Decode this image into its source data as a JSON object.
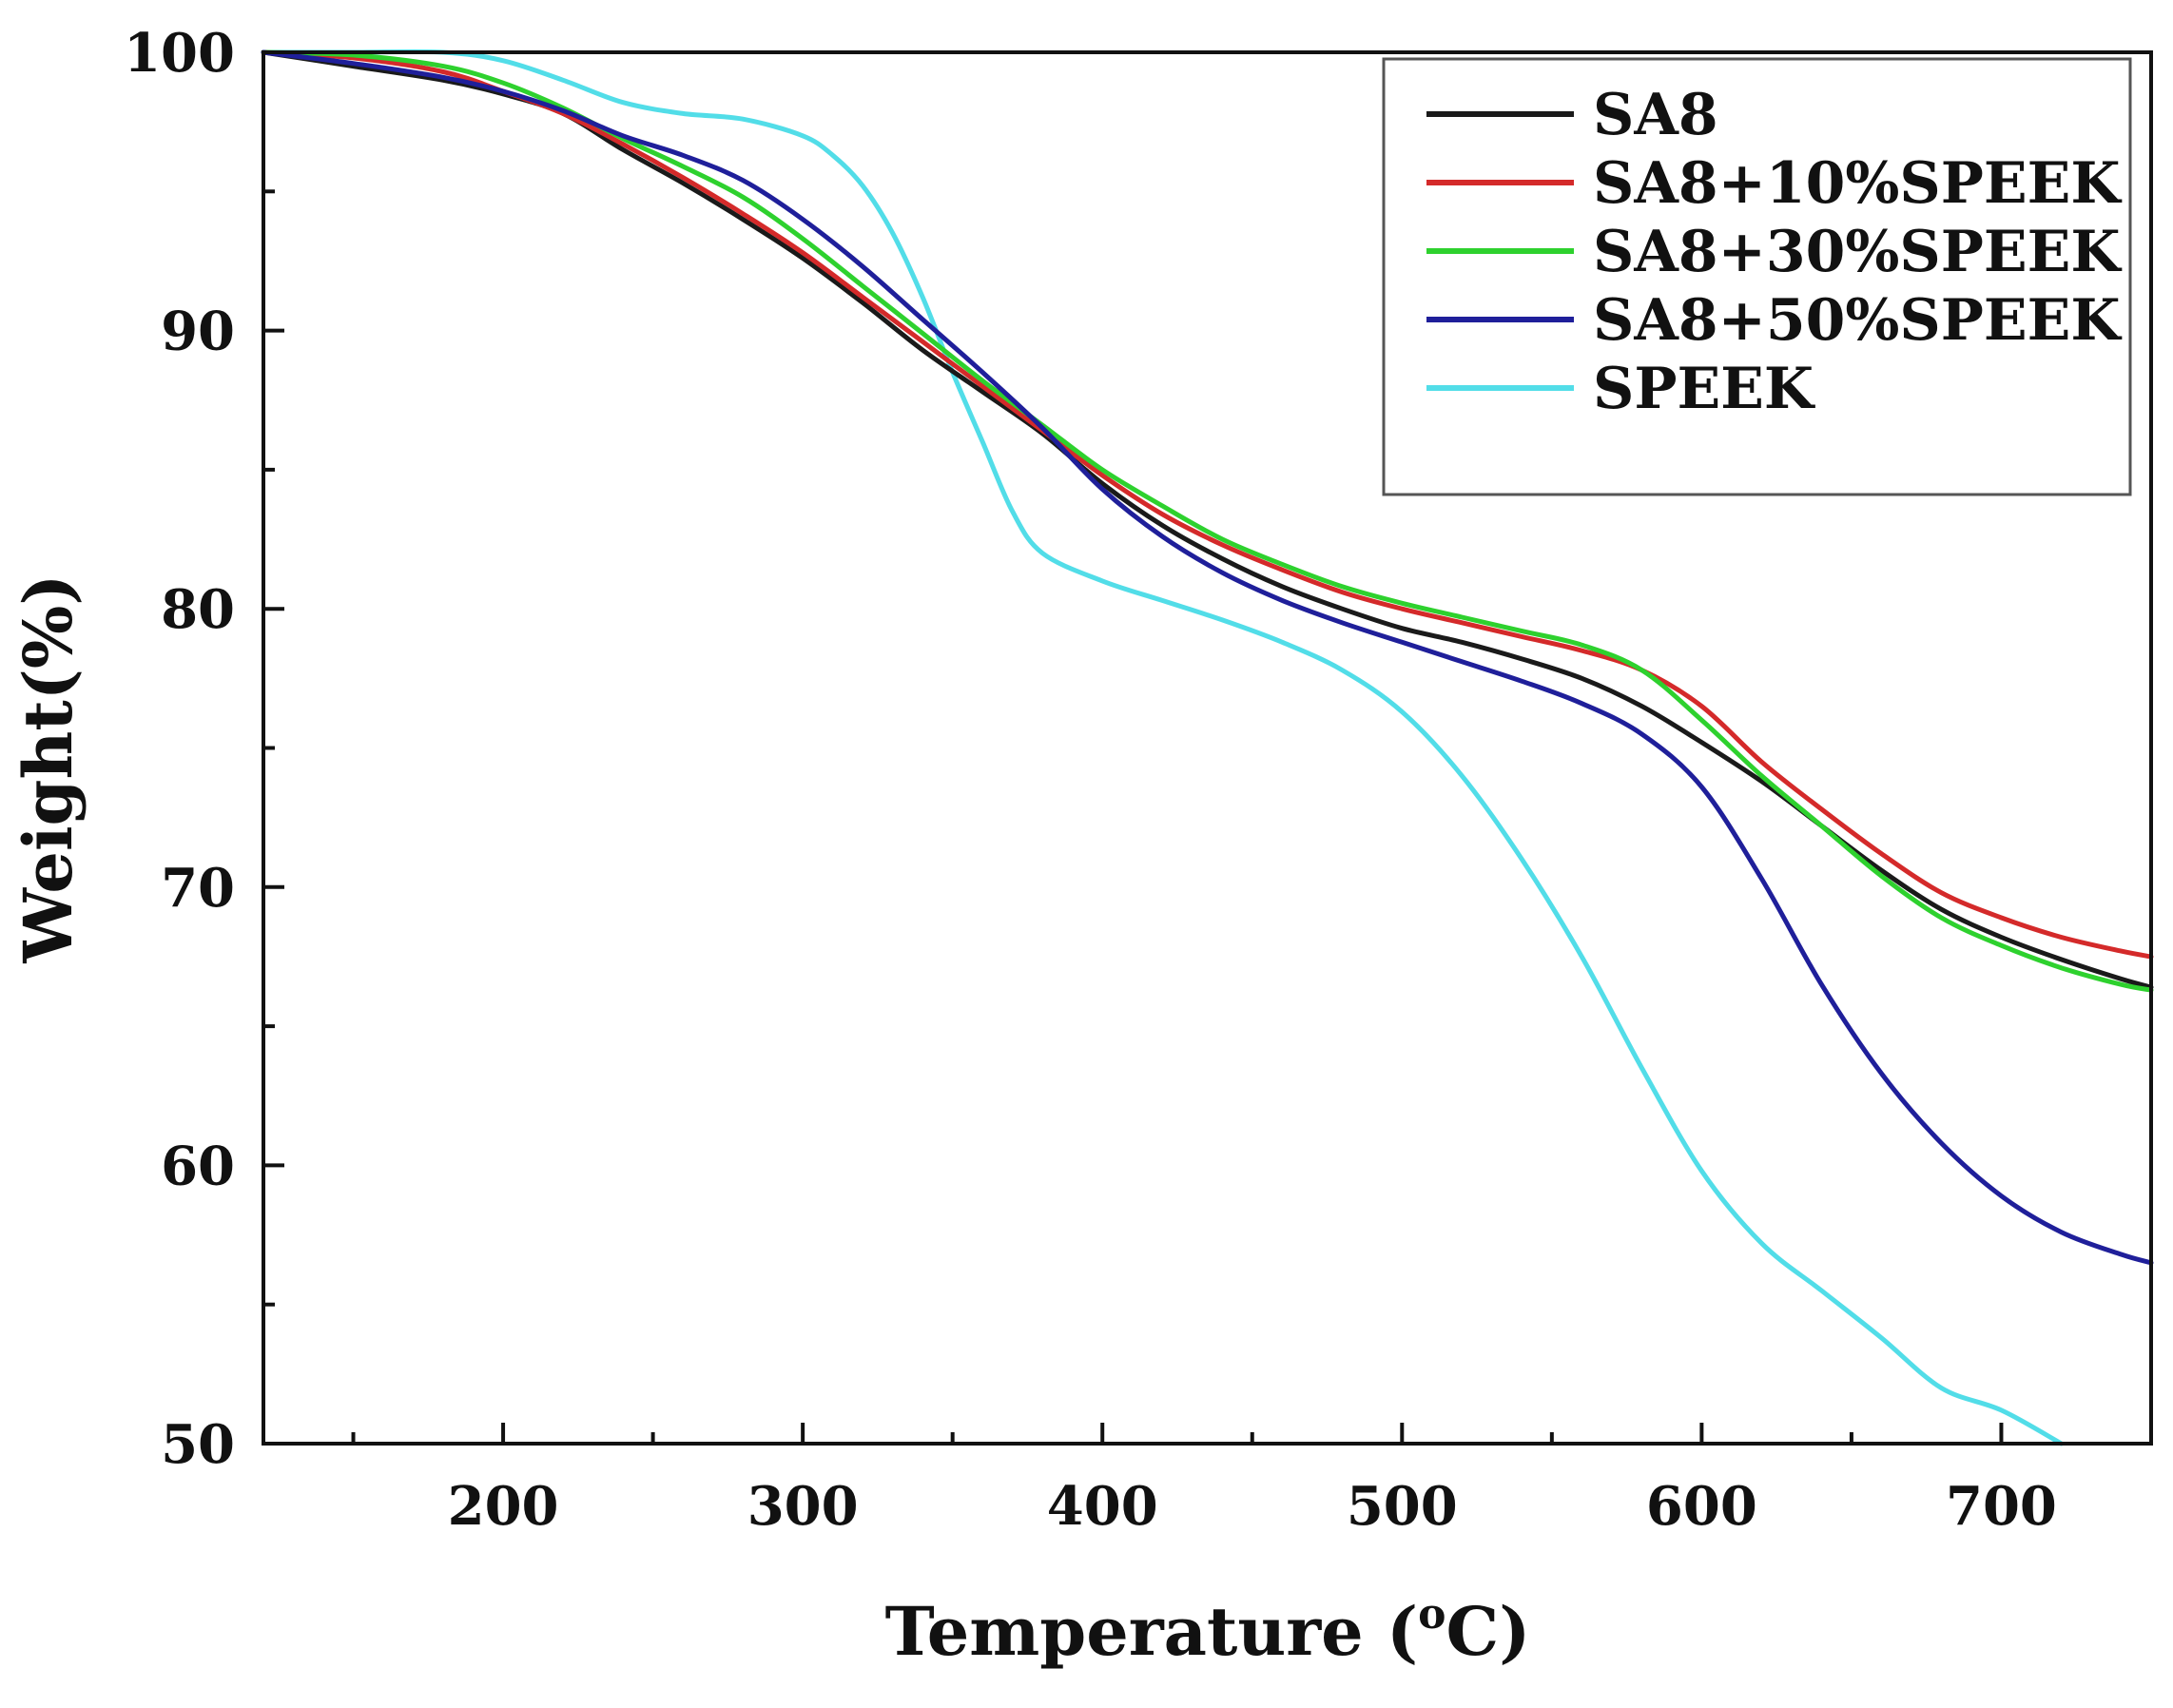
{
  "chart_data": {
    "type": "line",
    "title": "",
    "xlabel_main": "Temperature (",
    "xlabel_sup": "o",
    "xlabel_end": "C)",
    "ylabel": "Weight(%)",
    "xlim": [
      120,
      750
    ],
    "ylim": [
      50,
      100
    ],
    "xticks": [
      200,
      300,
      400,
      500,
      600,
      700
    ],
    "xtick_labels": [
      "200",
      "300",
      "400",
      "500",
      "600",
      "700"
    ],
    "yticks": [
      50,
      60,
      70,
      80,
      90,
      100
    ],
    "ytick_labels": [
      "50",
      "60",
      "70",
      "80",
      "90",
      "100"
    ],
    "legend_position": "top-right",
    "series": [
      {
        "name": "SA8",
        "color": "#1a1a1a",
        "x": [
          120,
          150,
          180,
          200,
          220,
          240,
          260,
          280,
          300,
          320,
          340,
          360,
          380,
          400,
          420,
          440,
          460,
          480,
          500,
          520,
          540,
          560,
          580,
          600,
          620,
          640,
          660,
          680,
          700,
          720,
          740,
          750
        ],
        "y": [
          100,
          99.5,
          99.0,
          98.5,
          97.8,
          96.5,
          95.3,
          94.0,
          92.6,
          91.0,
          89.3,
          87.8,
          86.3,
          84.5,
          83.0,
          81.8,
          80.8,
          80.0,
          79.3,
          78.8,
          78.2,
          77.5,
          76.5,
          75.2,
          73.8,
          72.2,
          70.6,
          69.2,
          68.2,
          67.4,
          66.7,
          66.4
        ]
      },
      {
        "name": "SA8+10%SPEEK",
        "color": "#d42a2a",
        "x": [
          120,
          150,
          180,
          200,
          220,
          240,
          260,
          280,
          300,
          320,
          340,
          360,
          380,
          400,
          420,
          440,
          460,
          480,
          500,
          520,
          540,
          560,
          580,
          600,
          620,
          640,
          660,
          680,
          700,
          720,
          740,
          750
        ],
        "y": [
          100,
          99.8,
          99.3,
          98.6,
          97.8,
          96.7,
          95.5,
          94.2,
          92.8,
          91.2,
          89.6,
          88.0,
          86.4,
          84.8,
          83.4,
          82.3,
          81.4,
          80.6,
          80.0,
          79.5,
          79.0,
          78.5,
          77.8,
          76.5,
          74.5,
          72.8,
          71.2,
          69.8,
          68.9,
          68.2,
          67.7,
          67.5
        ]
      },
      {
        "name": "SA8+30%SPEEK",
        "color": "#2ed12e",
        "x": [
          120,
          150,
          180,
          200,
          220,
          240,
          260,
          280,
          300,
          320,
          340,
          360,
          380,
          400,
          420,
          440,
          460,
          480,
          500,
          520,
          540,
          560,
          580,
          600,
          620,
          640,
          660,
          680,
          700,
          720,
          740,
          750
        ],
        "y": [
          100,
          99.9,
          99.5,
          98.9,
          98.0,
          96.9,
          95.9,
          94.8,
          93.3,
          91.6,
          89.9,
          88.2,
          86.6,
          85.0,
          83.7,
          82.5,
          81.6,
          80.8,
          80.2,
          79.7,
          79.2,
          78.7,
          77.8,
          76.0,
          74.0,
          72.2,
          70.4,
          68.9,
          67.9,
          67.1,
          66.5,
          66.3
        ]
      },
      {
        "name": "SA8+50%SPEEK",
        "color": "#1f1f9a",
        "x": [
          120,
          150,
          180,
          200,
          220,
          240,
          260,
          280,
          300,
          320,
          340,
          360,
          380,
          400,
          420,
          440,
          460,
          480,
          500,
          520,
          540,
          560,
          580,
          600,
          620,
          640,
          660,
          680,
          700,
          720,
          740,
          750
        ],
        "y": [
          100,
          99.6,
          99.1,
          98.6,
          97.9,
          97.0,
          96.3,
          95.4,
          94.0,
          92.3,
          90.4,
          88.5,
          86.5,
          84.3,
          82.6,
          81.3,
          80.3,
          79.5,
          78.8,
          78.1,
          77.4,
          76.6,
          75.5,
          73.6,
          70.3,
          66.5,
          63.3,
          60.8,
          58.9,
          57.6,
          56.8,
          56.5
        ]
      },
      {
        "name": "SPEEK",
        "color": "#52dde8",
        "x": [
          120,
          150,
          180,
          200,
          220,
          240,
          260,
          280,
          300,
          310,
          320,
          330,
          340,
          350,
          360,
          370,
          380,
          400,
          420,
          440,
          460,
          480,
          500,
          520,
          540,
          560,
          580,
          600,
          620,
          640,
          660,
          680,
          700,
          720
        ],
        "y": [
          100,
          100,
          100,
          99.7,
          99.0,
          98.2,
          97.8,
          97.6,
          97.0,
          96.3,
          95.2,
          93.5,
          91.2,
          88.5,
          86.0,
          83.5,
          82.0,
          81.0,
          80.3,
          79.6,
          78.8,
          77.8,
          76.3,
          74.0,
          71.0,
          67.5,
          63.5,
          59.8,
          57.2,
          55.5,
          53.8,
          52.0,
          51.2,
          50.0
        ]
      }
    ]
  }
}
